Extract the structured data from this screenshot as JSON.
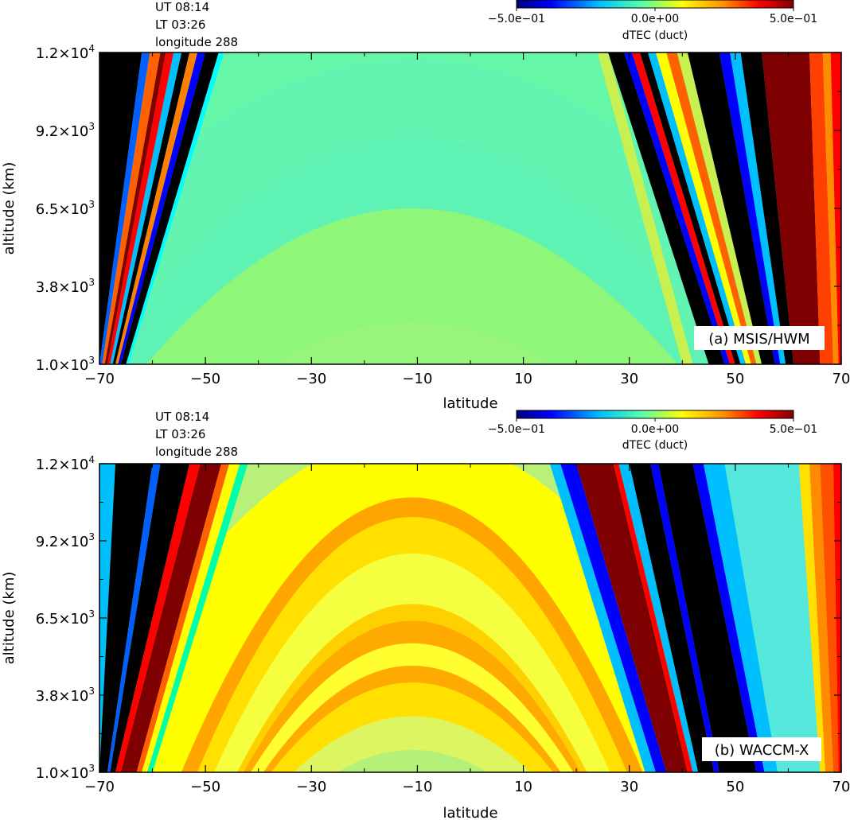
{
  "chart_data": [
    {
      "type": "heatmap",
      "panel_label": "(a) MSIS/HWM",
      "info": [
        "UT 08:14",
        "LT 03:26",
        "longitude 288"
      ],
      "colorbar": {
        "label": "dTEC (duct)",
        "range": [
          -0.5,
          0.5
        ],
        "tick_labels": [
          "−5.0e−01",
          "0.0e+00",
          "5.0e−01"
        ],
        "colors": [
          "#00007f",
          "#0000ff",
          "#00bfff",
          "#55ffaa",
          "#ffff00",
          "#ff8c00",
          "#ff0000",
          "#7f0000"
        ]
      },
      "xlabel": "latitude",
      "ylabel": "altitude (km)",
      "xlim": [
        -70,
        70
      ],
      "ylim": [
        1000,
        12000
      ],
      "x_ticks": [
        "−70",
        "−50",
        "−30",
        "−10",
        "10",
        "30",
        "50",
        "70"
      ],
      "y_ticks": [
        {
          "base": "1.0",
          "exp": "3"
        },
        {
          "base": "3.8",
          "exp": "3"
        },
        {
          "base": "6.5",
          "exp": "3"
        },
        {
          "base": "9.2",
          "exp": "3"
        },
        {
          "base": "1.2",
          "exp": "4"
        }
      ],
      "background": "#83f77f",
      "arches": [
        {
          "color": "#66f7a6",
          "apex_lat": -11,
          "apex_alt": 14500,
          "half_width": 115
        },
        {
          "color": "#62f4b0",
          "apex_lat": -11,
          "apex_alt": 11800,
          "half_width": 85
        },
        {
          "color": "#5ef2b4",
          "apex_lat": -11,
          "apex_alt": 9000,
          "half_width": 62
        },
        {
          "color": "#8ef77a",
          "apex_lat": -11,
          "apex_alt": 6500,
          "half_width": 55
        },
        {
          "color": "#96f57a",
          "apex_lat": -11,
          "apex_alt": 2500,
          "half_width": 35
        }
      ],
      "bands": [
        {
          "color": "#000000",
          "lat_top": [
            -70,
            -62
          ],
          "lat_bottom": [
            -70,
            -70
          ]
        },
        {
          "color": "#0060ff",
          "lat_top": [
            -62,
            -60.5
          ],
          "lat_bottom": [
            -70,
            -69.5
          ]
        },
        {
          "color": "#ff6000",
          "lat_top": [
            -60.5,
            -58.5
          ],
          "lat_bottom": [
            -69.5,
            -69
          ]
        },
        {
          "color": "#7f0000",
          "lat_top": [
            -58.5,
            -57.5
          ],
          "lat_bottom": [
            -69,
            -68.5
          ]
        },
        {
          "color": "#ff0000",
          "lat_top": [
            -57.5,
            -56
          ],
          "lat_bottom": [
            -68.5,
            -68
          ]
        },
        {
          "color": "#00bfff",
          "lat_top": [
            -56,
            -54.5
          ],
          "lat_bottom": [
            -68,
            -67.5
          ]
        },
        {
          "color": "#000000",
          "lat_top": [
            -54.5,
            -53
          ],
          "lat_bottom": [
            -67.5,
            -67
          ]
        },
        {
          "color": "#ff8000",
          "lat_top": [
            -53,
            -51.5
          ],
          "lat_bottom": [
            -67,
            -66.5
          ]
        },
        {
          "color": "#0000ff",
          "lat_top": [
            -51.5,
            -50
          ],
          "lat_bottom": [
            -66.5,
            -66
          ]
        },
        {
          "color": "#000000",
          "lat_top": [
            -50,
            -47.5
          ],
          "lat_bottom": [
            -66,
            -65
          ]
        },
        {
          "color": "#00ffff",
          "lat_top": [
            -47.5,
            -46.5
          ],
          "lat_bottom": [
            -65,
            -64.5
          ]
        },
        {
          "color": "#c8f050",
          "lat_top": [
            24,
            26
          ],
          "lat_bottom": [
            40,
            42
          ]
        },
        {
          "color": "#000000",
          "lat_top": [
            26,
            29
          ],
          "lat_bottom": [
            45,
            48
          ]
        },
        {
          "color": "#0000ff",
          "lat_top": [
            29,
            30.5
          ],
          "lat_bottom": [
            48,
            49
          ]
        },
        {
          "color": "#ff0000",
          "lat_top": [
            30.5,
            32
          ],
          "lat_bottom": [
            49,
            50
          ]
        },
        {
          "color": "#000000",
          "lat_top": [
            32,
            33.5
          ],
          "lat_bottom": [
            50,
            51
          ]
        },
        {
          "color": "#00bfff",
          "lat_top": [
            33.5,
            35
          ],
          "lat_bottom": [
            51,
            52
          ]
        },
        {
          "color": "#ffff00",
          "lat_top": [
            35,
            37
          ],
          "lat_bottom": [
            52,
            53
          ]
        },
        {
          "color": "#ff6000",
          "lat_top": [
            37,
            39
          ],
          "lat_bottom": [
            53,
            54
          ]
        },
        {
          "color": "#c8f050",
          "lat_top": [
            39,
            41
          ],
          "lat_bottom": [
            54,
            55
          ]
        },
        {
          "color": "#000000",
          "lat_top": [
            41,
            47
          ],
          "lat_bottom": [
            55,
            57.5
          ]
        },
        {
          "color": "#0000ff",
          "lat_top": [
            47,
            49
          ],
          "lat_bottom": [
            57.5,
            58.5
          ]
        },
        {
          "color": "#00bfff",
          "lat_top": [
            49,
            51
          ],
          "lat_bottom": [
            58.5,
            59.5
          ]
        },
        {
          "color": "#000000",
          "lat_top": [
            51,
            55
          ],
          "lat_bottom": [
            59.5,
            61
          ]
        },
        {
          "color": "#7f0000",
          "lat_top": [
            55,
            64
          ],
          "lat_bottom": [
            61,
            66
          ]
        },
        {
          "color": "#ff4000",
          "lat_top": [
            64,
            66.5
          ],
          "lat_bottom": [
            66,
            68.5
          ]
        },
        {
          "color": "#ff8c00",
          "lat_top": [
            66.5,
            68
          ],
          "lat_bottom": [
            68.5,
            69.5
          ]
        },
        {
          "color": "#ff0000",
          "lat_top": [
            68,
            70
          ],
          "lat_bottom": [
            69.5,
            70
          ]
        }
      ]
    },
    {
      "type": "heatmap",
      "panel_label": "(b) WACCM-X",
      "info": [
        "UT 08:14",
        "LT 03:26",
        "longitude 288"
      ],
      "colorbar": {
        "label": "dTEC (duct)",
        "range": [
          -0.5,
          0.5
        ],
        "tick_labels": [
          "−5.0e−01",
          "0.0e+00",
          "5.0e−01"
        ],
        "colors": [
          "#00007f",
          "#0000ff",
          "#00bfff",
          "#55ffaa",
          "#ffff00",
          "#ff8c00",
          "#ff0000",
          "#7f0000"
        ]
      },
      "xlabel": "latitude",
      "ylabel": "altitude (km)",
      "xlim": [
        -70,
        70
      ],
      "ylim": [
        1000,
        12000
      ],
      "x_ticks": [
        "−70",
        "−50",
        "−30",
        "−10",
        "10",
        "30",
        "50",
        "70"
      ],
      "y_ticks": [
        {
          "base": "1.0",
          "exp": "3"
        },
        {
          "base": "3.8",
          "exp": "3"
        },
        {
          "base": "6.5",
          "exp": "3"
        },
        {
          "base": "9.2",
          "exp": "3"
        },
        {
          "base": "1.2",
          "exp": "4"
        }
      ],
      "background": "#b8f07a",
      "arches": [
        {
          "color": "#ffff00",
          "apex_lat": -11,
          "apex_alt": 13000,
          "half_width": 68
        },
        {
          "color": "#ffa500",
          "apex_lat": -11,
          "apex_alt": 10800,
          "half_width": 46
        },
        {
          "color": "#ffe000",
          "apex_lat": -11,
          "apex_alt": 10100,
          "half_width": 43
        },
        {
          "color": "#f5ff40",
          "apex_lat": -11,
          "apex_alt": 8800,
          "half_width": 40
        },
        {
          "color": "#ffd000",
          "apex_lat": -11,
          "apex_alt": 7000,
          "half_width": 36
        },
        {
          "color": "#ffaa00",
          "apex_lat": -11,
          "apex_alt": 6400,
          "half_width": 35
        },
        {
          "color": "#ffff30",
          "apex_lat": -11,
          "apex_alt": 5600,
          "half_width": 34
        },
        {
          "color": "#ffaa00",
          "apex_lat": -11,
          "apex_alt": 4800,
          "half_width": 32
        },
        {
          "color": "#ffe000",
          "apex_lat": -11,
          "apex_alt": 4200,
          "half_width": 31
        },
        {
          "color": "#ddf560",
          "apex_lat": -11,
          "apex_alt": 3000,
          "half_width": 28
        },
        {
          "color": "#b4f07a",
          "apex_lat": -11,
          "apex_alt": 1800,
          "half_width": 22
        }
      ],
      "bands": [
        {
          "color": "#00bfff",
          "lat_top": [
            -70,
            -67
          ],
          "lat_bottom": [
            -70,
            -70
          ]
        },
        {
          "color": "#000000",
          "lat_top": [
            -67,
            -60
          ],
          "lat_bottom": [
            -70,
            -68.5
          ]
        },
        {
          "color": "#0060ff",
          "lat_top": [
            -60,
            -58.5
          ],
          "lat_bottom": [
            -68.5,
            -68
          ]
        },
        {
          "color": "#000000",
          "lat_top": [
            -58.5,
            -53
          ],
          "lat_bottom": [
            -68,
            -67
          ]
        },
        {
          "color": "#ff0000",
          "lat_top": [
            -53,
            -51
          ],
          "lat_bottom": [
            -67,
            -66
          ]
        },
        {
          "color": "#7f0000",
          "lat_top": [
            -51,
            -47
          ],
          "lat_bottom": [
            -66,
            -63
          ]
        },
        {
          "color": "#ff6000",
          "lat_top": [
            -47,
            -45.5
          ],
          "lat_bottom": [
            -63,
            -62
          ]
        },
        {
          "color": "#ffff00",
          "lat_top": [
            -45.5,
            -43.5
          ],
          "lat_bottom": [
            -62,
            -61
          ]
        },
        {
          "color": "#00ffaa",
          "lat_top": [
            -43.5,
            -42
          ],
          "lat_bottom": [
            -61,
            -60
          ]
        },
        {
          "color": "#00bfff",
          "lat_top": [
            15,
            17
          ],
          "lat_bottom": [
            33,
            35
          ]
        },
        {
          "color": "#0000ff",
          "lat_top": [
            17,
            20
          ],
          "lat_bottom": [
            35,
            37
          ]
        },
        {
          "color": "#7f0000",
          "lat_top": [
            20,
            27
          ],
          "lat_bottom": [
            37,
            41
          ]
        },
        {
          "color": "#ff0000",
          "lat_top": [
            27,
            28
          ],
          "lat_bottom": [
            41,
            42
          ]
        },
        {
          "color": "#00bfff",
          "lat_top": [
            28,
            30
          ],
          "lat_bottom": [
            42,
            43
          ]
        },
        {
          "color": "#000000",
          "lat_top": [
            30,
            34
          ],
          "lat_bottom": [
            43,
            46
          ]
        },
        {
          "color": "#0000ff",
          "lat_top": [
            34,
            35.5
          ],
          "lat_bottom": [
            46,
            47
          ]
        },
        {
          "color": "#000000",
          "lat_top": [
            35.5,
            42
          ],
          "lat_bottom": [
            47,
            54
          ]
        },
        {
          "color": "#0000ff",
          "lat_top": [
            42,
            44
          ],
          "lat_bottom": [
            54,
            55.5
          ]
        },
        {
          "color": "#00bfff",
          "lat_top": [
            44,
            48
          ],
          "lat_bottom": [
            55.5,
            58
          ]
        },
        {
          "color": "#55e8dd",
          "lat_top": [
            48,
            62
          ],
          "lat_bottom": [
            58,
            66
          ]
        },
        {
          "color": "#ffe000",
          "lat_top": [
            62,
            64
          ],
          "lat_bottom": [
            66,
            67
          ]
        },
        {
          "color": "#ff8c00",
          "lat_top": [
            64,
            66
          ],
          "lat_bottom": [
            67,
            68.5
          ]
        },
        {
          "color": "#ff5000",
          "lat_top": [
            66,
            68.5
          ],
          "lat_bottom": [
            68.5,
            69.5
          ]
        },
        {
          "color": "#ff0000",
          "lat_top": [
            68.5,
            70
          ],
          "lat_bottom": [
            69.5,
            70
          ]
        }
      ]
    }
  ]
}
